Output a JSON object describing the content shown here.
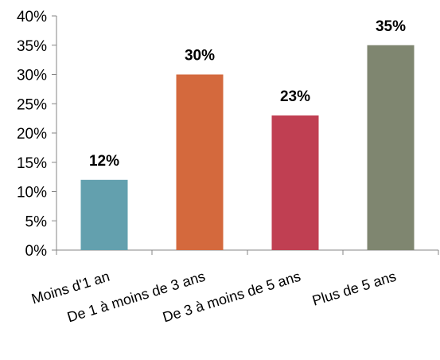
{
  "chart_data": {
    "type": "bar",
    "categories": [
      "Moins d'1 an",
      "De 1 à moins de 3 ans",
      "De 3 à moins de 5 ans",
      "Plus de 5 ans"
    ],
    "values": [
      12,
      30,
      23,
      35
    ],
    "data_labels": [
      "12%",
      "30%",
      "23%",
      "35%"
    ],
    "colors": [
      "#63a0ae",
      "#d4693d",
      "#c03f52",
      "#7f8670"
    ],
    "ylim": [
      0,
      40
    ],
    "yticks": [
      0,
      5,
      10,
      15,
      20,
      25,
      30,
      35,
      40
    ],
    "ytick_labels": [
      "0%",
      "5%",
      "10%",
      "15%",
      "20%",
      "25%",
      "30%",
      "35%",
      "40%"
    ],
    "title": "",
    "xlabel": "",
    "ylabel": "",
    "grid": false,
    "legend": "none"
  }
}
